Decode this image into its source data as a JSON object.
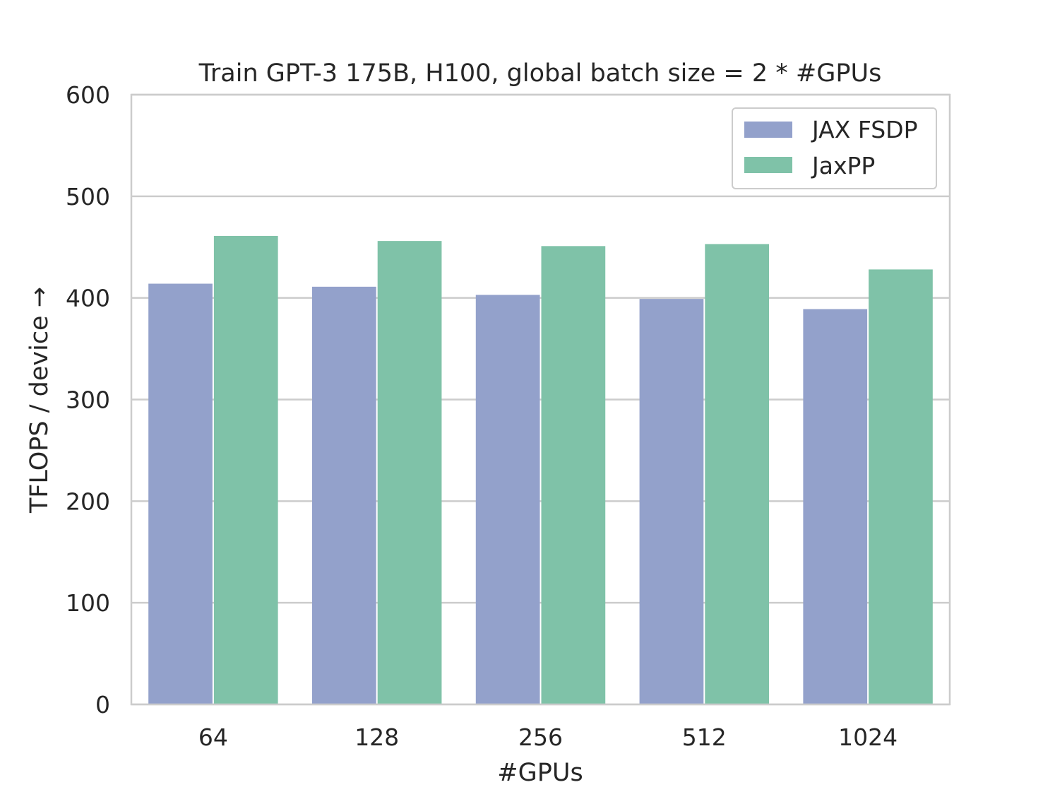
{
  "chart_data": {
    "type": "bar",
    "title": "Train GPT-3 175B, H100, global batch size = 2 * #GPUs",
    "xlabel": "#GPUs",
    "ylabel": "TFLOPS / device →",
    "categories": [
      "64",
      "128",
      "256",
      "512",
      "1024"
    ],
    "ylim": [
      0,
      600
    ],
    "yticks": [
      "0",
      "100",
      "200",
      "300",
      "400",
      "500",
      "600"
    ],
    "grid": "horizontal",
    "legend_position": "top-right",
    "series": [
      {
        "name": "JAX FSDP",
        "color": "#93a1cb",
        "values": [
          414,
          411,
          403,
          399,
          389
        ]
      },
      {
        "name": "JaxPP",
        "color": "#7fc2a8",
        "values": [
          461,
          456,
          451,
          453,
          428
        ]
      }
    ]
  }
}
